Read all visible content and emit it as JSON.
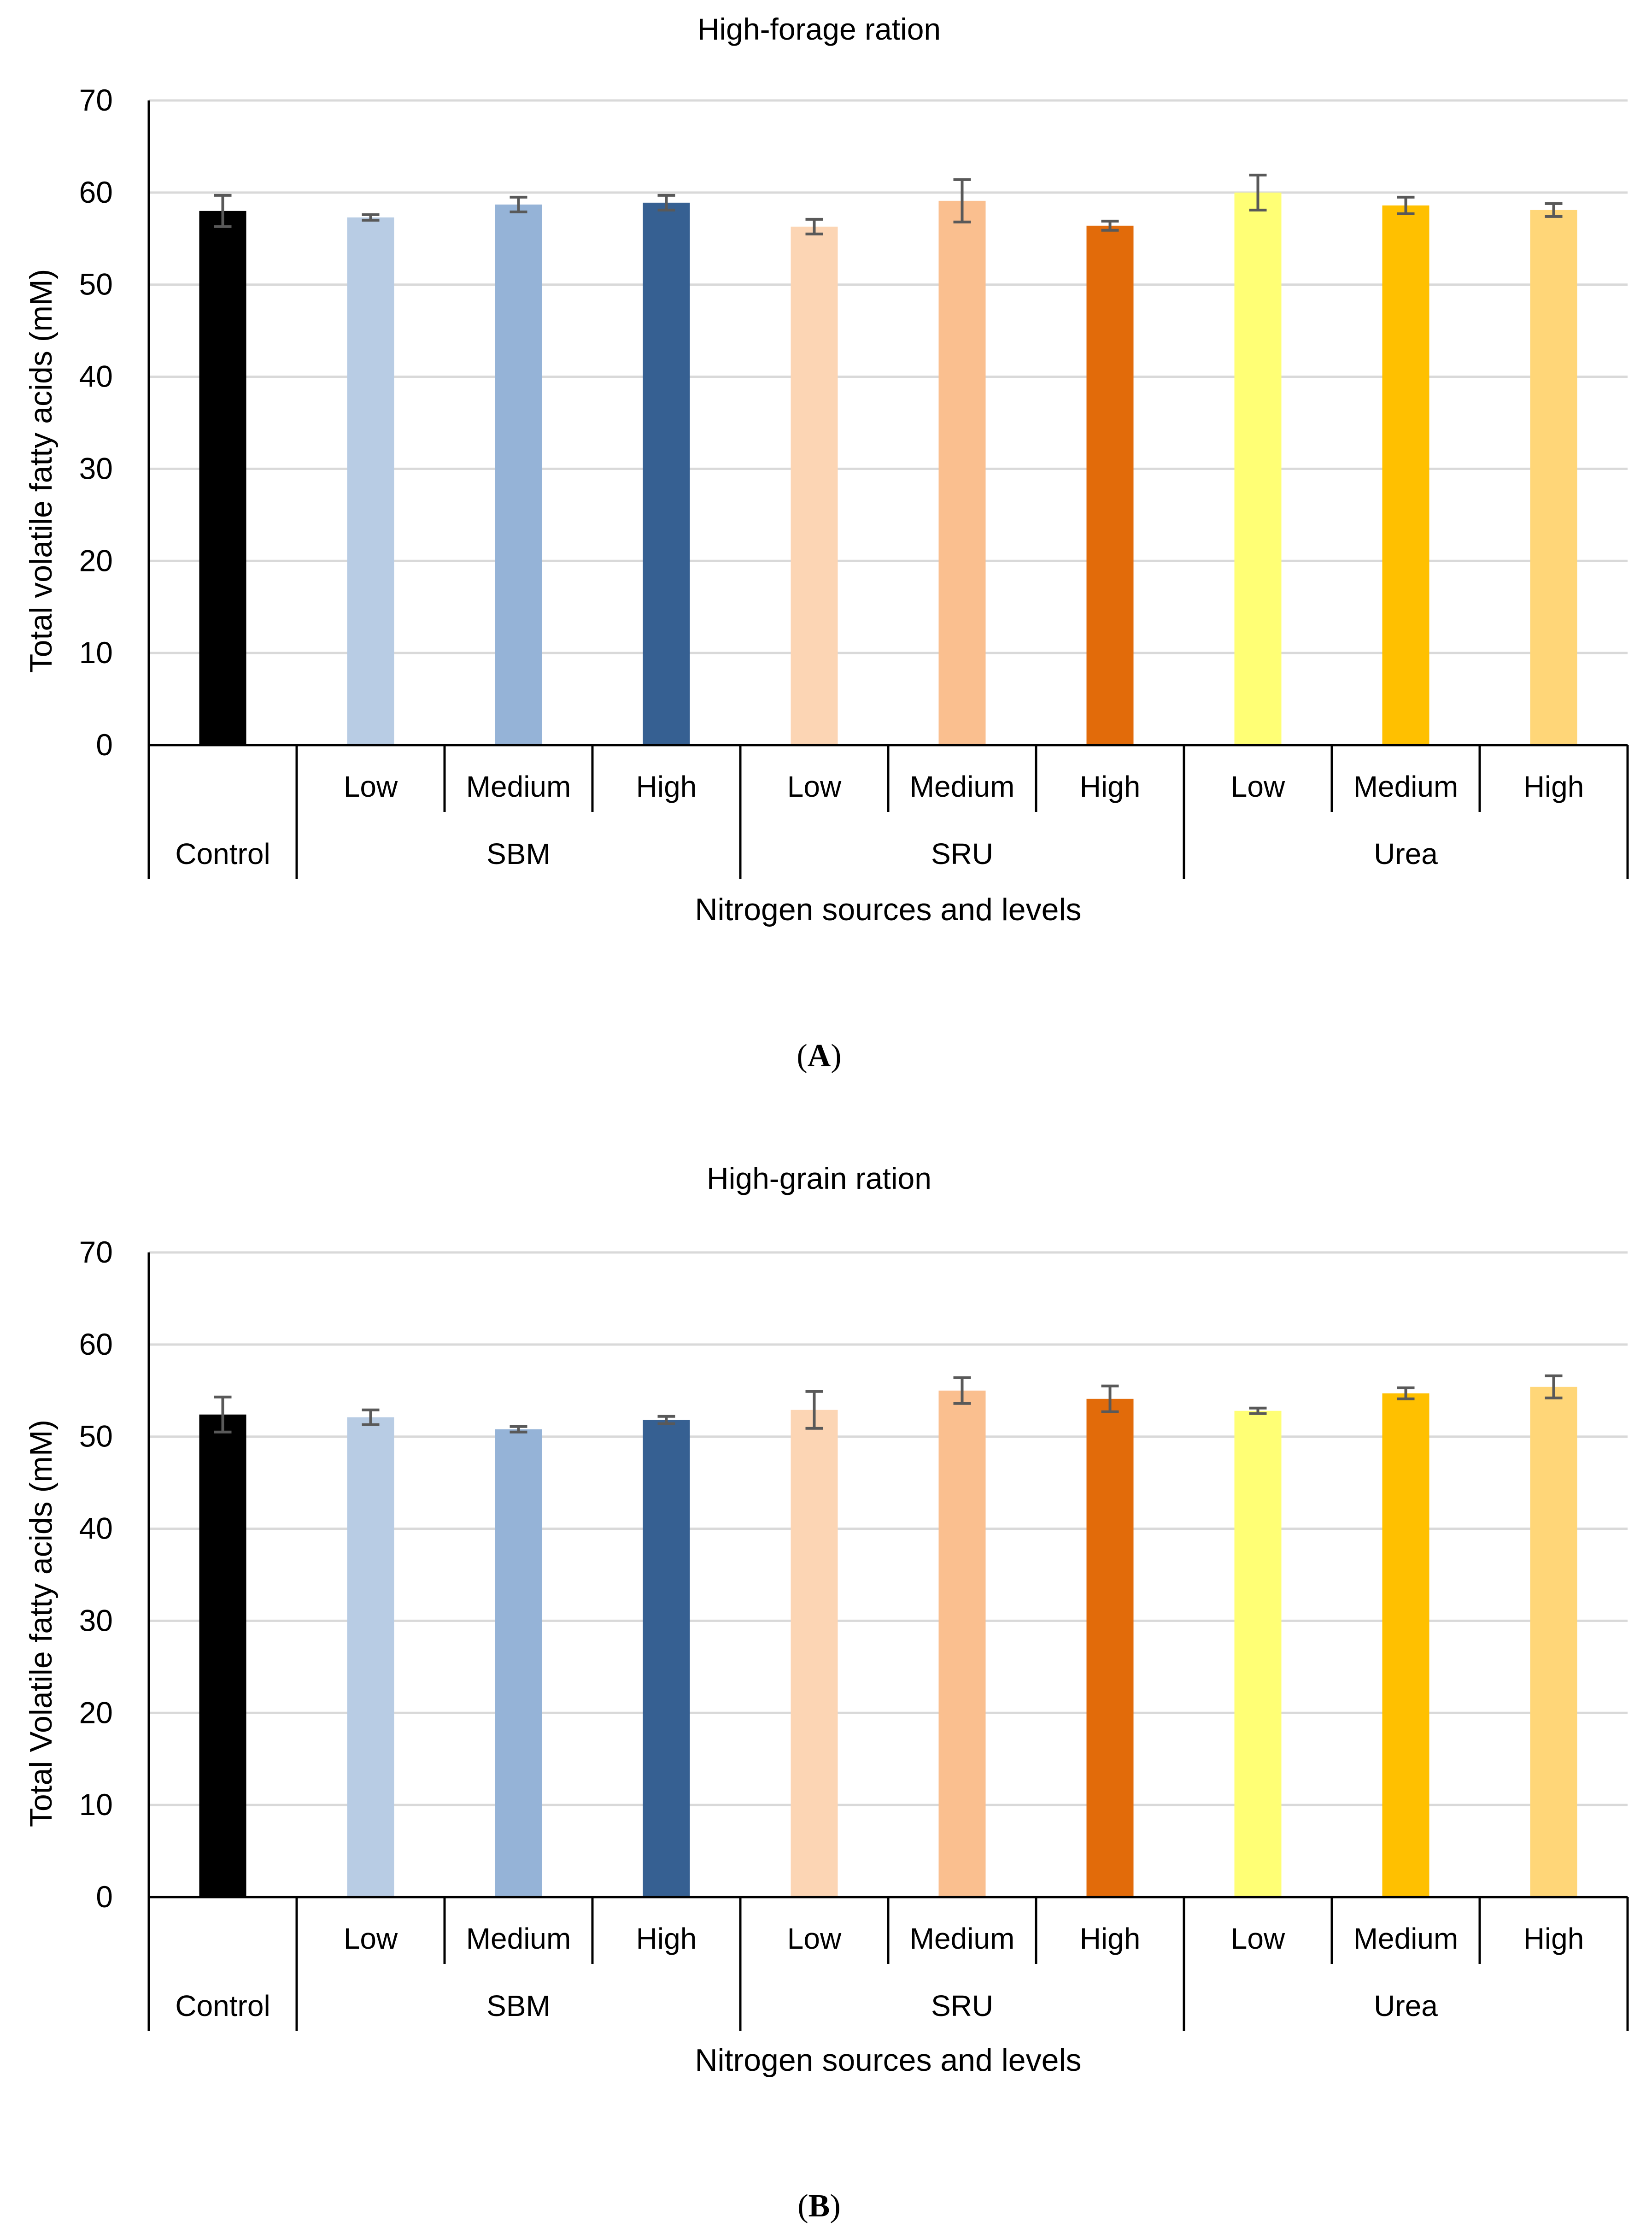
{
  "chart_data": [
    {
      "type": "bar",
      "panel_label": "A",
      "title": "High-forage ration",
      "xlabel": "Nitrogen sources and levels",
      "ylabel": "Total volatile fatty acids (mM)",
      "ylim": [
        0,
        70
      ],
      "yticks": [
        0,
        10,
        20,
        30,
        40,
        50,
        60,
        70
      ],
      "grid": true,
      "groups": [
        "Control",
        "SBM",
        "SRU",
        "Urea"
      ],
      "levels": [
        "Low",
        "Medium",
        "High"
      ],
      "categories": [
        "Control",
        "SBM Low",
        "SBM Medium",
        "SBM High",
        "SRU Low",
        "SRU Medium",
        "SRU High",
        "Urea Low",
        "Urea Medium",
        "Urea High"
      ],
      "values": [
        58.0,
        57.3,
        58.7,
        58.9,
        56.3,
        59.1,
        56.4,
        60.0,
        58.6,
        58.1
      ],
      "errors": [
        1.7,
        0.3,
        0.8,
        0.8,
        0.8,
        2.3,
        0.5,
        1.9,
        0.9,
        0.7
      ],
      "colors": [
        "#000000",
        "#b8cce4",
        "#95b3d7",
        "#366092",
        "#fcd5b4",
        "#fabf8f",
        "#e26b0a",
        "#ffff75",
        "#ffc000",
        "#ffd678"
      ]
    },
    {
      "type": "bar",
      "panel_label": "B",
      "title": "High-grain ration",
      "xlabel": "Nitrogen sources and levels",
      "ylabel": "Total Volatile fatty acids (mM)",
      "ylim": [
        0,
        70
      ],
      "yticks": [
        0,
        10,
        20,
        30,
        40,
        50,
        60,
        70
      ],
      "grid": true,
      "groups": [
        "Control",
        "SBM",
        "SRU",
        "Urea"
      ],
      "levels": [
        "Low",
        "Medium",
        "High"
      ],
      "categories": [
        "Control",
        "SBM Low",
        "SBM Medium",
        "SBM High",
        "SRU Low",
        "SRU Medium",
        "SRU High",
        "Urea Low",
        "Urea Medium",
        "Urea High"
      ],
      "values": [
        52.4,
        52.1,
        50.8,
        51.8,
        52.9,
        55.0,
        54.1,
        52.8,
        54.7,
        55.4
      ],
      "errors": [
        1.9,
        0.8,
        0.3,
        0.4,
        2.0,
        1.4,
        1.4,
        0.3,
        0.6,
        1.2
      ],
      "colors": [
        "#000000",
        "#b8cce4",
        "#95b3d7",
        "#366092",
        "#fcd5b4",
        "#fabf8f",
        "#e26b0a",
        "#ffff75",
        "#ffc000",
        "#ffd678"
      ]
    }
  ]
}
